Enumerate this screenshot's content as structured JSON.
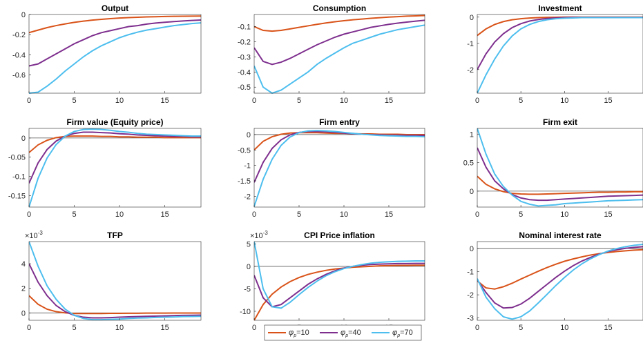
{
  "chart_data": [
    {
      "type": "line",
      "title": "Output",
      "x": [
        0,
        1,
        2,
        3,
        4,
        5,
        6,
        7,
        8,
        9,
        10,
        11,
        12,
        13,
        14,
        15,
        16,
        17,
        18,
        19
      ],
      "xlim": [
        0,
        19
      ],
      "xticks": [
        0,
        5,
        10,
        15
      ],
      "ylim": [
        -0.78,
        0
      ],
      "yticks": [
        -0.6,
        -0.4,
        -0.2,
        0
      ],
      "zero_line": false,
      "series": [
        {
          "color": "#d95319",
          "values": [
            -0.18,
            -0.155,
            -0.13,
            -0.11,
            -0.093,
            -0.078,
            -0.066,
            -0.056,
            -0.048,
            -0.041,
            -0.035,
            -0.031,
            -0.027,
            -0.024,
            -0.022,
            -0.02,
            -0.018,
            -0.017,
            -0.016,
            -0.015
          ]
        },
        {
          "color": "#7e2f8e",
          "values": [
            -0.51,
            -0.49,
            -0.44,
            -0.39,
            -0.34,
            -0.29,
            -0.25,
            -0.21,
            -0.18,
            -0.16,
            -0.14,
            -0.12,
            -0.11,
            -0.095,
            -0.085,
            -0.077,
            -0.07,
            -0.064,
            -0.059,
            -0.055
          ]
        },
        {
          "color": "#4dbeee",
          "values": [
            -0.78,
            -0.77,
            -0.71,
            -0.64,
            -0.56,
            -0.49,
            -0.42,
            -0.36,
            -0.31,
            -0.27,
            -0.23,
            -0.2,
            -0.175,
            -0.155,
            -0.14,
            -0.125,
            -0.11,
            -0.1,
            -0.09,
            -0.083
          ]
        }
      ]
    },
    {
      "type": "line",
      "title": "Consumption",
      "x": [
        0,
        1,
        2,
        3,
        4,
        5,
        6,
        7,
        8,
        9,
        10,
        11,
        12,
        13,
        14,
        15,
        16,
        17,
        18,
        19
      ],
      "xlim": [
        0,
        19
      ],
      "xticks": [
        0,
        5,
        10,
        15
      ],
      "ylim": [
        -0.54,
        -0.02
      ],
      "yticks": [
        -0.5,
        -0.4,
        -0.3,
        -0.2,
        -0.1
      ],
      "zero_line": false,
      "series": [
        {
          "color": "#d95319",
          "values": [
            -0.1,
            -0.125,
            -0.13,
            -0.125,
            -0.115,
            -0.105,
            -0.095,
            -0.085,
            -0.076,
            -0.068,
            -0.061,
            -0.055,
            -0.05,
            -0.045,
            -0.041,
            -0.037,
            -0.034,
            -0.031,
            -0.029,
            -0.027
          ]
        },
        {
          "color": "#7e2f8e",
          "values": [
            -0.24,
            -0.33,
            -0.35,
            -0.335,
            -0.31,
            -0.28,
            -0.25,
            -0.22,
            -0.195,
            -0.17,
            -0.15,
            -0.135,
            -0.12,
            -0.105,
            -0.095,
            -0.085,
            -0.077,
            -0.07,
            -0.064,
            -0.058
          ]
        },
        {
          "color": "#4dbeee",
          "values": [
            -0.36,
            -0.5,
            -0.54,
            -0.52,
            -0.48,
            -0.44,
            -0.4,
            -0.35,
            -0.31,
            -0.275,
            -0.24,
            -0.21,
            -0.19,
            -0.17,
            -0.15,
            -0.135,
            -0.12,
            -0.11,
            -0.1,
            -0.09
          ]
        }
      ]
    },
    {
      "type": "line",
      "title": "Investment",
      "x": [
        0,
        1,
        2,
        3,
        4,
        5,
        6,
        7,
        8,
        9,
        10,
        11,
        12,
        13,
        14,
        15,
        16,
        17,
        18,
        19
      ],
      "xlim": [
        0,
        19
      ],
      "xticks": [
        0,
        5,
        10,
        15
      ],
      "ylim": [
        -2.9,
        0.1
      ],
      "yticks": [
        -2,
        -1,
        0
      ],
      "zero_line": false,
      "series": [
        {
          "color": "#d95319",
          "values": [
            -0.7,
            -0.45,
            -0.28,
            -0.17,
            -0.1,
            -0.06,
            -0.035,
            -0.02,
            -0.01,
            -0.005,
            0,
            0,
            0,
            0,
            0,
            0,
            0,
            0,
            0,
            0
          ]
        },
        {
          "color": "#7e2f8e",
          "values": [
            -2.0,
            -1.4,
            -0.95,
            -0.63,
            -0.4,
            -0.25,
            -0.15,
            -0.09,
            -0.05,
            -0.03,
            -0.02,
            -0.01,
            -0.01,
            -0.01,
            -0.01,
            -0.01,
            -0.01,
            -0.01,
            -0.01,
            -0.01
          ]
        },
        {
          "color": "#4dbeee",
          "values": [
            -2.9,
            -2.2,
            -1.6,
            -1.1,
            -0.72,
            -0.45,
            -0.28,
            -0.17,
            -0.1,
            -0.06,
            -0.04,
            -0.03,
            -0.02,
            -0.02,
            -0.02,
            -0.02,
            -0.02,
            -0.02,
            -0.02,
            -0.02
          ]
        }
      ]
    },
    {
      "type": "line",
      "title": "Firm value (Equity price)",
      "x": [
        0,
        1,
        2,
        3,
        4,
        5,
        6,
        7,
        8,
        9,
        10,
        11,
        12,
        13,
        14,
        15,
        16,
        17,
        18,
        19
      ],
      "xlim": [
        0,
        19
      ],
      "xticks": [
        0,
        5,
        10,
        15
      ],
      "ylim": [
        -0.18,
        0.025
      ],
      "yticks": [
        -0.15,
        -0.1,
        -0.05,
        0
      ],
      "zero_line": true,
      "series": [
        {
          "color": "#d95319",
          "values": [
            -0.038,
            -0.018,
            -0.006,
            0.001,
            0.004,
            0.005,
            0.005,
            0.005,
            0.004,
            0.004,
            0.003,
            0.003,
            0.002,
            0.002,
            0.002,
            0.001,
            0.001,
            0.001,
            0.001,
            0.001
          ]
        },
        {
          "color": "#7e2f8e",
          "values": [
            -0.118,
            -0.065,
            -0.03,
            -0.008,
            0.005,
            0.012,
            0.015,
            0.015,
            0.014,
            0.013,
            0.011,
            0.01,
            0.008,
            0.007,
            0.006,
            0.005,
            0.004,
            0.004,
            0.003,
            0.003
          ]
        },
        {
          "color": "#4dbeee",
          "values": [
            -0.18,
            -0.105,
            -0.052,
            -0.017,
            0.005,
            0.017,
            0.022,
            0.023,
            0.022,
            0.02,
            0.017,
            0.015,
            0.012,
            0.01,
            0.009,
            0.008,
            0.007,
            0.006,
            0.005,
            0.005
          ]
        }
      ]
    },
    {
      "type": "line",
      "title": "Firm entry",
      "x": [
        0,
        1,
        2,
        3,
        4,
        5,
        6,
        7,
        8,
        9,
        10,
        11,
        12,
        13,
        14,
        15,
        16,
        17,
        18,
        19
      ],
      "xlim": [
        0,
        19
      ],
      "xticks": [
        0,
        5,
        10,
        15
      ],
      "ylim": [
        -2.35,
        0.2
      ],
      "yticks": [
        -2,
        -1.5,
        -1,
        -0.5,
        0
      ],
      "zero_line": true,
      "series": [
        {
          "color": "#d95319",
          "values": [
            -0.5,
            -0.22,
            -0.07,
            0.01,
            0.05,
            0.06,
            0.06,
            0.06,
            0.05,
            0.04,
            0.04,
            0.03,
            0.02,
            0.02,
            0.01,
            0.01,
            0.01,
            0,
            0,
            0
          ]
        },
        {
          "color": "#7e2f8e",
          "values": [
            -1.55,
            -0.9,
            -0.45,
            -0.17,
            -0.01,
            0.07,
            0.1,
            0.1,
            0.09,
            0.07,
            0.05,
            0.03,
            0.01,
            0,
            -0.01,
            -0.02,
            -0.02,
            -0.03,
            -0.03,
            -0.03
          ]
        },
        {
          "color": "#4dbeee",
          "values": [
            -2.33,
            -1.45,
            -0.8,
            -0.35,
            -0.08,
            0.06,
            0.12,
            0.13,
            0.12,
            0.1,
            0.07,
            0.04,
            0.01,
            -0.01,
            -0.03,
            -0.04,
            -0.05,
            -0.06,
            -0.06,
            -0.07
          ]
        }
      ]
    },
    {
      "type": "line",
      "title": "Firm exit",
      "x": [
        0,
        1,
        2,
        3,
        4,
        5,
        6,
        7,
        8,
        9,
        10,
        11,
        12,
        13,
        14,
        15,
        16,
        17,
        18,
        19
      ],
      "xlim": [
        0,
        19
      ],
      "xticks": [
        0,
        5,
        10,
        15
      ],
      "ylim": [
        -0.28,
        1.1
      ],
      "yticks": [
        0,
        0.5,
        1
      ],
      "zero_line": true,
      "series": [
        {
          "color": "#d95319",
          "values": [
            0.26,
            0.12,
            0.04,
            -0.01,
            -0.04,
            -0.05,
            -0.055,
            -0.055,
            -0.05,
            -0.045,
            -0.04,
            -0.035,
            -0.03,
            -0.025,
            -0.02,
            -0.02,
            -0.015,
            -0.015,
            -0.01,
            -0.01
          ]
        },
        {
          "color": "#7e2f8e",
          "values": [
            0.76,
            0.42,
            0.18,
            0.04,
            -0.06,
            -0.12,
            -0.15,
            -0.16,
            -0.16,
            -0.15,
            -0.14,
            -0.13,
            -0.12,
            -0.11,
            -0.1,
            -0.09,
            -0.085,
            -0.08,
            -0.075,
            -0.07
          ]
        },
        {
          "color": "#4dbeee",
          "values": [
            1.1,
            0.65,
            0.3,
            0.08,
            -0.07,
            -0.18,
            -0.23,
            -0.26,
            -0.25,
            -0.24,
            -0.22,
            -0.21,
            -0.2,
            -0.19,
            -0.18,
            -0.17,
            -0.165,
            -0.16,
            -0.155,
            -0.15
          ]
        }
      ]
    },
    {
      "type": "line",
      "title": "TFP",
      "y_multiplier": {
        "base": "×10",
        "exponent": "-3"
      },
      "x": [
        0,
        1,
        2,
        3,
        4,
        5,
        6,
        7,
        8,
        9,
        10,
        11,
        12,
        13,
        14,
        15,
        16,
        17,
        18,
        19
      ],
      "xlim": [
        0,
        19
      ],
      "xticks": [
        0,
        5,
        10,
        15
      ],
      "ylim": [
        -0.6,
        5.8
      ],
      "yticks": [
        0,
        2,
        4
      ],
      "zero_line": true,
      "series": [
        {
          "color": "#d95319",
          "values": [
            1.4,
            0.7,
            0.3,
            0.1,
            0,
            -0.05,
            -0.05,
            -0.05,
            -0.05,
            -0.04,
            -0.04,
            -0.03,
            -0.03,
            -0.02,
            -0.02,
            -0.02,
            -0.01,
            -0.01,
            -0.01,
            -0.01
          ]
        },
        {
          "color": "#7e2f8e",
          "values": [
            4,
            2.5,
            1.4,
            0.6,
            0.1,
            -0.2,
            -0.35,
            -0.4,
            -0.4,
            -0.38,
            -0.35,
            -0.32,
            -0.3,
            -0.28,
            -0.26,
            -0.24,
            -0.22,
            -0.2,
            -0.19,
            -0.18
          ]
        },
        {
          "color": "#4dbeee",
          "values": [
            5.8,
            3.8,
            2.2,
            1.1,
            0.3,
            -0.2,
            -0.45,
            -0.55,
            -0.55,
            -0.52,
            -0.5,
            -0.45,
            -0.42,
            -0.4,
            -0.37,
            -0.35,
            -0.33,
            -0.3,
            -0.29,
            -0.28
          ]
        }
      ]
    },
    {
      "type": "line",
      "title": "CPI Price inflation",
      "y_multiplier": {
        "base": "×10",
        "exponent": "-3"
      },
      "x": [
        0,
        1,
        2,
        3,
        4,
        5,
        6,
        7,
        8,
        9,
        10,
        11,
        12,
        13,
        14,
        15,
        16,
        17,
        18,
        19
      ],
      "xlim": [
        0,
        19
      ],
      "xticks": [
        0,
        5,
        10,
        15
      ],
      "ylim": [
        -12,
        5.5
      ],
      "yticks": [
        -10,
        -5,
        0,
        5
      ],
      "zero_line": true,
      "series": [
        {
          "color": "#d95319",
          "values": [
            -12,
            -8.5,
            -6.2,
            -4.6,
            -3.4,
            -2.5,
            -1.8,
            -1.3,
            -0.9,
            -0.6,
            -0.4,
            -0.2,
            -0.1,
            0,
            0.1,
            0.15,
            0.2,
            0.2,
            0.25,
            0.25
          ]
        },
        {
          "color": "#7e2f8e",
          "values": [
            -2,
            -7,
            -9,
            -8.5,
            -7,
            -5.5,
            -4,
            -2.8,
            -1.8,
            -1,
            -0.4,
            0,
            0.25,
            0.4,
            0.5,
            0.55,
            0.6,
            0.6,
            0.65,
            0.65
          ]
        },
        {
          "color": "#4dbeee",
          "values": [
            5.5,
            -5,
            -9,
            -9.3,
            -8,
            -6.3,
            -4.7,
            -3.3,
            -2.1,
            -1.2,
            -0.5,
            0,
            0.4,
            0.7,
            0.9,
            1,
            1.1,
            1.15,
            1.2,
            1.2
          ]
        }
      ]
    },
    {
      "type": "line",
      "title": "Nominal interest rate",
      "x": [
        0,
        1,
        2,
        3,
        4,
        5,
        6,
        7,
        8,
        9,
        10,
        11,
        12,
        13,
        14,
        15,
        16,
        17,
        18,
        19
      ],
      "xlim": [
        0,
        19
      ],
      "xticks": [
        0,
        5,
        10,
        15
      ],
      "ylim": [
        -3.1,
        0.3
      ],
      "yticks": [
        -3,
        -2,
        -1,
        0
      ],
      "zero_line": true,
      "series": [
        {
          "color": "#d95319",
          "values": [
            -1.4,
            -1.7,
            -1.75,
            -1.65,
            -1.5,
            -1.32,
            -1.15,
            -0.98,
            -0.82,
            -0.68,
            -0.55,
            -0.45,
            -0.36,
            -0.28,
            -0.22,
            -0.17,
            -0.13,
            -0.1,
            -0.07,
            -0.05
          ]
        },
        {
          "color": "#7e2f8e",
          "values": [
            -1.35,
            -1.9,
            -2.35,
            -2.57,
            -2.55,
            -2.4,
            -2.15,
            -1.85,
            -1.55,
            -1.25,
            -0.98,
            -0.74,
            -0.54,
            -0.38,
            -0.24,
            -0.13,
            -0.05,
            0.01,
            0.05,
            0.08
          ]
        },
        {
          "color": "#4dbeee",
          "values": [
            -1.3,
            -2.1,
            -2.6,
            -2.95,
            -3.05,
            -2.95,
            -2.7,
            -2.35,
            -1.98,
            -1.6,
            -1.25,
            -0.93,
            -0.66,
            -0.44,
            -0.26,
            -0.11,
            0,
            0.08,
            0.14,
            0.18
          ]
        }
      ]
    }
  ],
  "legend": {
    "entries": [
      {
        "symbol": "φ",
        "subscript": "p",
        "text": "=10"
      },
      {
        "symbol": "φ",
        "subscript": "p",
        "text": "=40"
      },
      {
        "symbol": "φ",
        "subscript": "p",
        "text": "=70"
      }
    ]
  }
}
